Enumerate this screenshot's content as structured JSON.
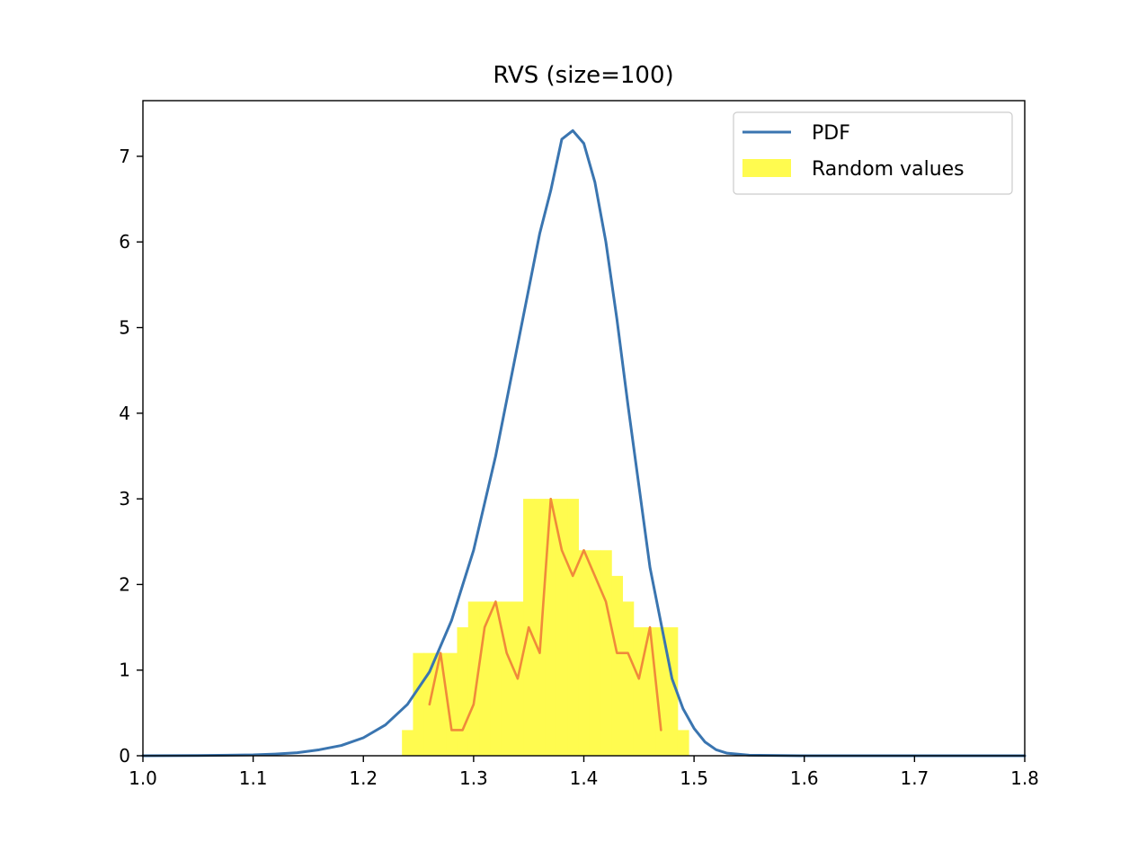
{
  "chart_data": {
    "type": "histogram+line",
    "title": "RVS (size=100)",
    "xlabel": "",
    "ylabel": "",
    "xlim": [
      1.0,
      1.8
    ],
    "ylim": [
      0,
      7.65
    ],
    "x_ticks": [
      1.0,
      1.1,
      1.2,
      1.3,
      1.4,
      1.5,
      1.6,
      1.7,
      1.8
    ],
    "x_tick_labels": [
      "1.0",
      "1.1",
      "1.2",
      "1.3",
      "1.4",
      "1.5",
      "1.6",
      "1.7",
      "1.8"
    ],
    "y_ticks": [
      0,
      1,
      2,
      3,
      4,
      5,
      6,
      7
    ],
    "y_tick_labels": [
      "0",
      "1",
      "2",
      "3",
      "4",
      "5",
      "6",
      "7"
    ],
    "grid": false,
    "legend": {
      "placement": "top-right",
      "entries": [
        {
          "label": "PDF",
          "kind": "line",
          "color": "#3a75b0"
        },
        {
          "label": "Random values",
          "kind": "patch",
          "color": "#fffb4f"
        }
      ]
    },
    "series": [
      {
        "name": "PDF",
        "kind": "line",
        "color": "#3a75b0",
        "x": [
          1.0,
          1.05,
          1.1,
          1.12,
          1.14,
          1.16,
          1.18,
          1.2,
          1.22,
          1.24,
          1.26,
          1.28,
          1.3,
          1.32,
          1.34,
          1.36,
          1.37,
          1.38,
          1.39,
          1.4,
          1.41,
          1.42,
          1.43,
          1.44,
          1.46,
          1.48,
          1.49,
          1.5,
          1.51,
          1.52,
          1.53,
          1.55,
          1.6,
          1.7,
          1.8
        ],
        "y": [
          0.0,
          0.003,
          0.01,
          0.02,
          0.035,
          0.07,
          0.12,
          0.21,
          0.36,
          0.6,
          0.98,
          1.58,
          2.4,
          3.5,
          4.8,
          6.1,
          6.6,
          7.2,
          7.3,
          7.15,
          6.7,
          6.0,
          5.1,
          4.1,
          2.2,
          0.9,
          0.55,
          0.32,
          0.16,
          0.07,
          0.03,
          0.006,
          0.0,
          0.0,
          0.0
        ]
      },
      {
        "name": "Random values",
        "kind": "histogram",
        "color": "#fffb4f",
        "bin_edges": [
          1.235,
          1.245,
          1.255,
          1.265,
          1.275,
          1.285,
          1.295,
          1.305,
          1.315,
          1.325,
          1.335,
          1.345,
          1.355,
          1.365,
          1.375,
          1.385,
          1.395,
          1.405,
          1.415,
          1.425,
          1.435,
          1.445,
          1.455,
          1.465,
          1.475,
          1.485,
          1.495
        ],
        "values": [
          0.3,
          1.2,
          1.2,
          1.2,
          1.2,
          1.5,
          1.8,
          1.8,
          1.8,
          1.8,
          1.8,
          3.0,
          3.0,
          3.0,
          3.0,
          3.0,
          2.4,
          2.4,
          2.4,
          2.1,
          1.8,
          1.5,
          1.5,
          1.5,
          1.5,
          0.3
        ]
      },
      {
        "name": "",
        "kind": "line",
        "color": "#f08a3a",
        "x": [
          1.26,
          1.27,
          1.28,
          1.29,
          1.3,
          1.31,
          1.32,
          1.33,
          1.34,
          1.35,
          1.36,
          1.37,
          1.38,
          1.39,
          1.4,
          1.41,
          1.42,
          1.43,
          1.44,
          1.45,
          1.46,
          1.47
        ],
        "y": [
          0.6,
          1.2,
          0.3,
          0.3,
          0.6,
          1.5,
          1.8,
          1.2,
          0.9,
          1.5,
          1.2,
          3.0,
          2.4,
          2.1,
          2.4,
          2.1,
          1.8,
          1.2,
          1.2,
          0.9,
          1.5,
          0.3
        ]
      }
    ]
  }
}
